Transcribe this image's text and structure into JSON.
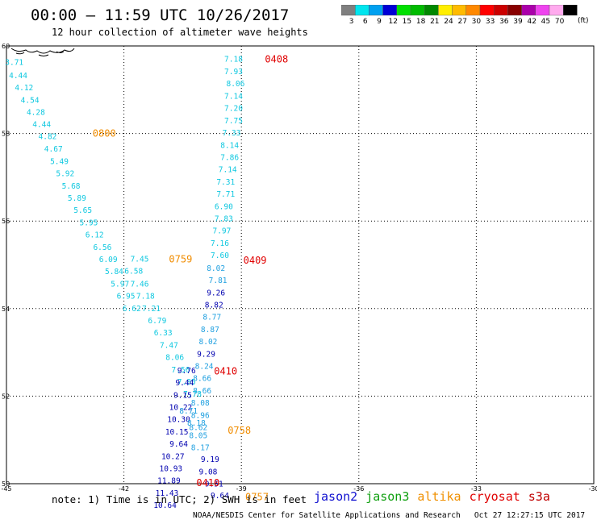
{
  "header": {
    "title": "00:00 – 11:59 UTC 10/26/2017",
    "subtitle": "12 hour collection of altimeter wave heights"
  },
  "colorbar": {
    "unit": "(ft)",
    "levels": [
      {
        "label": "3",
        "color": "#7f7f7f"
      },
      {
        "label": "6",
        "color": "#00e5ee"
      },
      {
        "label": "9",
        "color": "#00a0f0"
      },
      {
        "label": "12",
        "color": "#0000d6"
      },
      {
        "label": "15",
        "color": "#00e000"
      },
      {
        "label": "18",
        "color": "#00bb00"
      },
      {
        "label": "21",
        "color": "#008800"
      },
      {
        "label": "24",
        "color": "#ffee00"
      },
      {
        "label": "27",
        "color": "#ffbb00"
      },
      {
        "label": "30",
        "color": "#ff8800"
      },
      {
        "label": "33",
        "color": "#ff0000"
      },
      {
        "label": "36",
        "color": "#cc0000"
      },
      {
        "label": "39",
        "color": "#880000"
      },
      {
        "label": "42",
        "color": "#aa00aa"
      },
      {
        "label": "45",
        "color": "#ee44ee"
      },
      {
        "label": "70",
        "color": "#ffaaee"
      },
      {
        "label": "",
        "color": "#000000"
      }
    ]
  },
  "axes": {
    "x_ticks": [
      "-45",
      "-42",
      "-39",
      "-36",
      "-33",
      "-30"
    ],
    "y_ticks": [
      "60",
      "58",
      "56",
      "54",
      "52",
      "50"
    ]
  },
  "colors": {
    "cyan": "#10c8e0",
    "midblue": "#20a0e0",
    "navy": "#0000b0",
    "red": "#e00000",
    "orange": "#f08c00"
  },
  "passes": [
    {
      "name": "pass-0800",
      "time_label": "0800",
      "time_color": "orange",
      "time_at": [
        -42.8,
        58.0
      ],
      "color": "cyan",
      "points": [
        [
          -44.8,
          59.62,
          "3.71"
        ],
        [
          -44.7,
          59.32,
          "4.44"
        ],
        [
          -44.55,
          59.04,
          "4.12"
        ],
        [
          -44.4,
          58.76,
          "4.54"
        ],
        [
          -44.25,
          58.48,
          "4.28"
        ],
        [
          -44.1,
          58.2,
          "4.44"
        ],
        [
          -43.95,
          57.93,
          "4.82"
        ],
        [
          -43.8,
          57.64,
          "4.67"
        ],
        [
          -43.65,
          57.36,
          "5.49"
        ],
        [
          -43.5,
          57.08,
          "5.92"
        ],
        [
          -43.35,
          56.8,
          "5.68"
        ],
        [
          -43.2,
          56.52,
          "5.89"
        ],
        [
          -43.05,
          56.24,
          "5.65"
        ],
        [
          -42.9,
          55.96,
          "5.95"
        ],
        [
          -42.75,
          55.68,
          "6.12"
        ],
        [
          -42.55,
          55.4,
          "6.56"
        ],
        [
          -42.4,
          55.12,
          "6.09"
        ],
        [
          -42.25,
          54.84,
          "5.84"
        ],
        [
          -42.1,
          54.56,
          "5.97"
        ],
        [
          -41.95,
          54.28,
          "6.95"
        ],
        [
          -41.8,
          54.0,
          "6.62"
        ]
      ]
    },
    {
      "name": "pass-0759",
      "time_label": "0759",
      "time_color": "orange",
      "time_at": [
        -40.85,
        55.13
      ],
      "color": "cyan",
      "points": [
        [
          -41.6,
          55.13,
          "7.45"
        ],
        [
          -41.75,
          54.85,
          "6.58"
        ],
        [
          -41.6,
          54.56,
          "7.46"
        ],
        [
          -41.45,
          54.28,
          "7.18"
        ],
        [
          -41.3,
          54.0,
          "7.21"
        ],
        [
          -41.15,
          53.72,
          "6.79"
        ],
        [
          -41.0,
          53.44,
          "6.33"
        ],
        [
          -40.85,
          53.16,
          "7.47"
        ],
        [
          -40.7,
          52.88,
          "8.06"
        ],
        [
          -40.55,
          52.6,
          "7.56"
        ],
        [
          -40.4,
          52.32,
          "7.85"
        ],
        [
          -40.25,
          52.04,
          "7.78"
        ]
      ]
    },
    {
      "name": "pass-0408",
      "time_label": "0408",
      "time_color": "red",
      "time_at": [
        -38.4,
        59.7
      ],
      "color": "cyan",
      "points": [
        [
          -39.2,
          59.7,
          "7.18"
        ],
        [
          -39.2,
          59.41,
          "7.93"
        ],
        [
          -39.15,
          59.13,
          "8.06"
        ],
        [
          -39.2,
          58.85,
          "7.14"
        ],
        [
          -39.2,
          58.57,
          "7.20"
        ],
        [
          -39.2,
          58.29,
          "7.75"
        ],
        [
          -39.25,
          58.01,
          "7.33"
        ],
        [
          -39.3,
          57.73,
          "8.14"
        ],
        [
          -39.3,
          57.45,
          "7.86"
        ],
        [
          -39.35,
          57.17,
          "7.14"
        ],
        [
          -39.4,
          56.89,
          "7.31"
        ],
        [
          -39.4,
          56.61,
          "7.71"
        ],
        [
          -39.45,
          56.33,
          "6.90"
        ],
        [
          -39.45,
          56.05,
          "7.83"
        ],
        [
          -39.5,
          55.77,
          "7.97"
        ],
        [
          -39.55,
          55.49,
          "7.16"
        ],
        [
          -39.55,
          55.21,
          "7.60"
        ]
      ]
    },
    {
      "name": "pass-0409",
      "time_label": "0409",
      "time_color": "red",
      "time_at": [
        -38.95,
        55.1
      ],
      "color": "midblue",
      "points": [
        [
          -39.65,
          54.92,
          "8.02"
        ],
        [
          -39.6,
          54.64,
          "7.81"
        ]
      ]
    },
    {
      "name": "pass-0409-b",
      "time_label": "",
      "time_color": "red",
      "time_at": [
        0,
        0
      ],
      "color": "navy",
      "points": [
        [
          -39.65,
          54.36,
          "9.26"
        ],
        [
          -39.7,
          54.08,
          "8.82"
        ]
      ]
    },
    {
      "name": "pass-0409-c",
      "time_label": "",
      "time_color": "red",
      "time_at": [
        0,
        0
      ],
      "color": "midblue",
      "points": [
        [
          -39.75,
          53.8,
          "8.77"
        ],
        [
          -39.8,
          53.52,
          "8.87"
        ],
        [
          -39.85,
          53.24,
          "8.02"
        ]
      ]
    },
    {
      "name": "pass-0410",
      "time_label": "0410",
      "time_color": "red",
      "time_at": [
        -39.7,
        52.57
      ],
      "color": "navy",
      "points": [
        [
          -39.9,
          52.96,
          "9.29"
        ]
      ]
    },
    {
      "name": "pass-0410-b",
      "time_label": "",
      "time_color": "red",
      "time_at": [
        0,
        0
      ],
      "color": "midblue",
      "points": [
        [
          -39.95,
          52.68,
          "8.24"
        ],
        [
          -40.0,
          52.4,
          "8.66"
        ],
        [
          -40.0,
          52.12,
          "8.66"
        ],
        [
          -40.05,
          51.84,
          "8.08"
        ],
        [
          -40.05,
          51.56,
          "8.96"
        ],
        [
          -40.1,
          51.28,
          "8.62"
        ]
      ]
    },
    {
      "name": "pass-0410-c",
      "time_label": "",
      "time_color": "red",
      "time_at": [
        0,
        0
      ],
      "color": "navy",
      "points": [
        [
          -40.4,
          52.58,
          "9.76"
        ],
        [
          -40.45,
          52.3,
          "9.44"
        ],
        [
          -40.5,
          52.02,
          "9.15"
        ],
        [
          -40.55,
          51.74,
          "10.22"
        ],
        [
          -40.6,
          51.46,
          "10.30"
        ],
        [
          -40.65,
          51.18,
          "10.15"
        ],
        [
          -40.6,
          50.9,
          "9.64"
        ],
        [
          -40.75,
          50.62,
          "10.27"
        ],
        [
          -40.8,
          50.34,
          "10.93"
        ],
        [
          -40.85,
          50.06,
          "11.89"
        ],
        [
          -40.9,
          49.78,
          "11.43"
        ],
        [
          -40.95,
          49.5,
          "10.64"
        ]
      ]
    },
    {
      "name": "pass-0758",
      "time_label": "0758",
      "time_color": "orange",
      "time_at": [
        -39.35,
        51.22
      ],
      "color": "midblue",
      "points": [
        [
          -40.35,
          51.66,
          "8.71"
        ],
        [
          -40.15,
          51.38,
          "8.18"
        ],
        [
          -40.1,
          51.1,
          "8.05"
        ],
        [
          -40.05,
          50.82,
          "8.17"
        ]
      ]
    },
    {
      "name": "pass-0410-d",
      "time_label": "0410",
      "time_color": "red",
      "time_at": [
        -40.15,
        50.02
      ],
      "color": "navy",
      "points": [
        [
          -39.8,
          50.55,
          "9.19"
        ],
        [
          -39.85,
          50.27,
          "9.08"
        ],
        [
          -39.7,
          49.99,
          "9.51"
        ],
        [
          -39.55,
          49.72,
          "9.64"
        ]
      ]
    },
    {
      "name": "pass-0757",
      "time_label": "0757",
      "time_color": "orange",
      "time_at": [
        -38.9,
        49.7
      ],
      "color": "cyan",
      "points": []
    }
  ],
  "note": "note: 1) Time is in UTC; 2) SWH is in feet",
  "sources": [
    {
      "label": "jason2",
      "color": "#1010d0"
    },
    {
      "label": "jason3",
      "color": "#10a010"
    },
    {
      "label": "altika",
      "color": "#f09000"
    },
    {
      "label": "cryosat",
      "color": "#e00000"
    },
    {
      "label": "s3a",
      "color": "#c00000"
    }
  ],
  "footer": "NOAA/NESDIS Center for Satellite Applications and Research   Oct 27 12:27:15 UTC 2017"
}
